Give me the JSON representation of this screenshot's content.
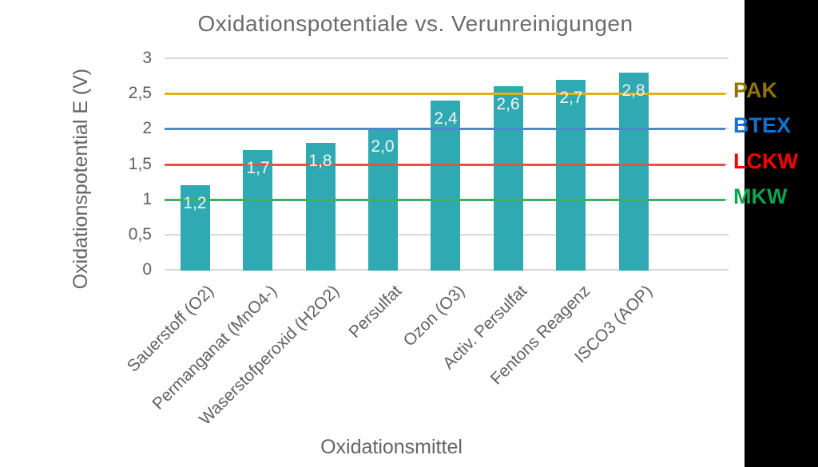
{
  "chart_data": {
    "type": "bar",
    "title": "Oxidationspotentiale vs. Verunreinigungen",
    "xlabel": "Oxidationsmittel",
    "ylabel": "Oxidationspotential E (V)",
    "categories": [
      "Sauerstoff (O2)",
      "Permanganat (MnO4-)",
      "Waserstofperoxid (H2O2)",
      "Persulfat",
      "Ozon (O3)",
      "Activ. Persulfat",
      "Fentons Reagenz",
      "ISCO3 (AOP)"
    ],
    "values": [
      1.2,
      1.7,
      1.8,
      2.0,
      2.4,
      2.6,
      2.7,
      2.8
    ],
    "value_labels": [
      "1,2",
      "1,7",
      "1,8",
      "2,0",
      "2,4",
      "2,6",
      "2,7",
      "2,8"
    ],
    "ylim": [
      0,
      3
    ],
    "ytick_values": [
      0,
      0.5,
      1,
      1.5,
      2,
      2.5,
      3
    ],
    "ytick_labels": [
      "0",
      "0,5",
      "1",
      "1,5",
      "2",
      "2,5",
      "3"
    ],
    "grid": true,
    "legend_position": "right",
    "bar_color": "#2FA9B2",
    "value_label_color": "#F2F4F4",
    "gridline_color": "#D9D9D9",
    "reference_lines": [
      {
        "label": "PAK",
        "value": 2.5,
        "line_color": "#E2B213",
        "label_color": "#8F7507"
      },
      {
        "label": "BTEX",
        "value": 2.0,
        "line_color": "#4E86CC",
        "label_color": "#1273CE"
      },
      {
        "label": "LCKW",
        "value": 1.5,
        "line_color": "#E8504A",
        "label_color": "#FB0000"
      },
      {
        "label": "MKW",
        "value": 1.0,
        "line_color": "#3FAD63",
        "label_color": "#0FA350"
      }
    ]
  }
}
